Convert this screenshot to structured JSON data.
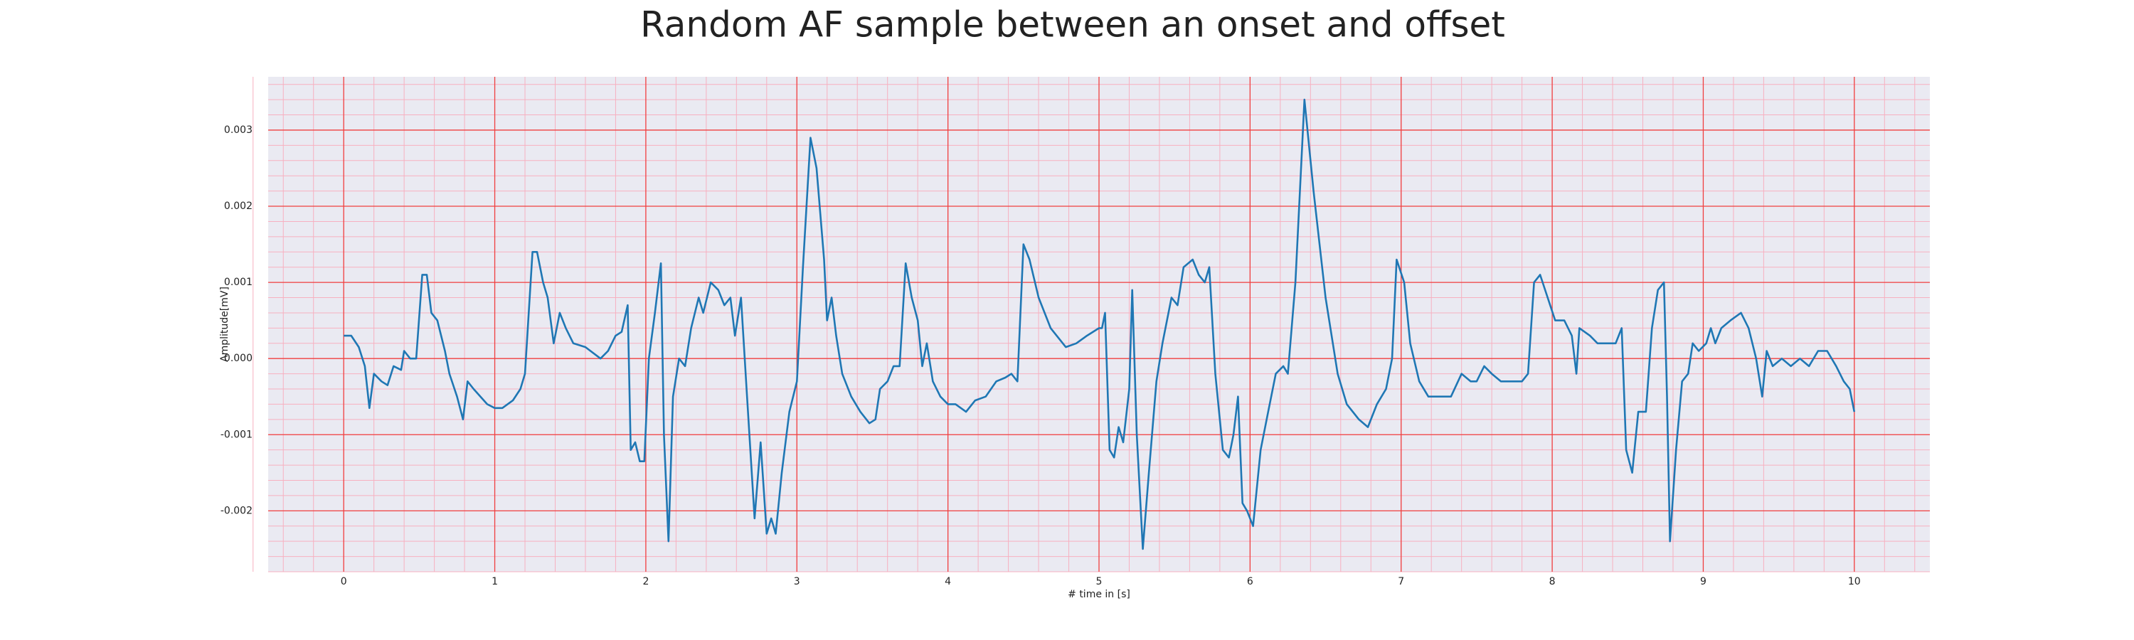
{
  "chart_data": {
    "type": "line",
    "title": "Random AF sample between an onset and offset",
    "xlabel": "# time in [s]",
    "ylabel": "Amplitude[mV]",
    "color": "#1f77b4",
    "grid": true,
    "minor_grid": true,
    "xlim": [
      -0.5,
      10.5
    ],
    "ylim": [
      -0.0028,
      0.0037
    ],
    "xticks": [
      0,
      1,
      2,
      3,
      4,
      5,
      6,
      7,
      8,
      9,
      10
    ],
    "yticks": [
      -0.002,
      -0.001,
      {
        "value": 0,
        "label": "0.000"
      },
      0.001,
      0.002,
      0.003
    ],
    "x": [
      0.0,
      0.05,
      0.1,
      0.14,
      0.17,
      0.2,
      0.25,
      0.29,
      0.33,
      0.38,
      0.4,
      0.44,
      0.48,
      0.52,
      0.55,
      0.58,
      0.62,
      0.67,
      0.7,
      0.75,
      0.79,
      0.82,
      0.86,
      0.95,
      1.0,
      1.05,
      1.12,
      1.17,
      1.2,
      1.25,
      1.28,
      1.32,
      1.35,
      1.39,
      1.43,
      1.47,
      1.52,
      1.6,
      1.7,
      1.75,
      1.8,
      1.84,
      1.88,
      1.9,
      1.93,
      1.96,
      1.99,
      2.02,
      2.06,
      2.1,
      2.12,
      2.15,
      2.18,
      2.22,
      2.26,
      2.3,
      2.35,
      2.38,
      2.43,
      2.48,
      2.52,
      2.56,
      2.59,
      2.63,
      2.67,
      2.72,
      2.76,
      2.8,
      2.83,
      2.86,
      2.9,
      2.95,
      3.0,
      3.04,
      3.09,
      3.13,
      3.18,
      3.2,
      3.23,
      3.26,
      3.3,
      3.36,
      3.42,
      3.48,
      3.52,
      3.55,
      3.6,
      3.64,
      3.68,
      3.72,
      3.76,
      3.8,
      3.83,
      3.86,
      3.9,
      3.95,
      4.0,
      4.05,
      4.12,
      4.18,
      4.25,
      4.32,
      4.38,
      4.42,
      4.46,
      4.5,
      4.54,
      4.6,
      4.68,
      4.78,
      4.85,
      4.92,
      5.0,
      5.02,
      5.04,
      5.07,
      5.1,
      5.13,
      5.16,
      5.2,
      5.22,
      5.25,
      5.29,
      5.33,
      5.38,
      5.42,
      5.48,
      5.52,
      5.56,
      5.62,
      5.66,
      5.7,
      5.73,
      5.77,
      5.82,
      5.86,
      5.89,
      5.92,
      5.95,
      5.98,
      6.02,
      6.07,
      6.12,
      6.17,
      6.22,
      6.25,
      6.3,
      6.36,
      6.42,
      6.5,
      6.58,
      6.64,
      6.72,
      6.78,
      6.84,
      6.9,
      6.94,
      6.97,
      7.02,
      7.06,
      7.12,
      7.18,
      7.25,
      7.33,
      7.4,
      7.46,
      7.5,
      7.55,
      7.6,
      7.66,
      7.74,
      7.8,
      7.84,
      7.88,
      7.92,
      7.97,
      8.02,
      8.08,
      8.13,
      8.16,
      8.18,
      8.25,
      8.3,
      8.36,
      8.42,
      8.46,
      8.49,
      8.53,
      8.57,
      8.62,
      8.66,
      8.7,
      8.74,
      8.76,
      8.78,
      8.82,
      8.86,
      8.9,
      8.93,
      8.97,
      9.02,
      9.05,
      9.08,
      9.12,
      9.18,
      9.25,
      9.3,
      9.35,
      9.39,
      9.42,
      9.46,
      9.52,
      9.58,
      9.64,
      9.7,
      9.76,
      9.82,
      9.88,
      9.93,
      9.97,
      10.0
    ],
    "values": [
      0.0003,
      0.0003,
      0.00015,
      -0.0001,
      -0.00065,
      -0.0002,
      -0.0003,
      -0.00035,
      -0.0001,
      -0.00015,
      0.0001,
      0.0,
      0.0,
      0.0011,
      0.0011,
      0.0006,
      0.0005,
      0.0001,
      -0.0002,
      -0.0005,
      -0.0008,
      -0.0003,
      -0.0004,
      -0.0006,
      -0.00065,
      -0.00065,
      -0.00055,
      -0.0004,
      -0.0002,
      0.0014,
      0.0014,
      0.001,
      0.0008,
      0.0002,
      0.0006,
      0.0004,
      0.0002,
      0.00015,
      0.0,
      0.0001,
      0.0003,
      0.00035,
      0.0007,
      -0.0012,
      -0.0011,
      -0.00135,
      -0.00135,
      0.0,
      0.0006,
      0.00125,
      -0.001,
      -0.0024,
      -0.0005,
      0.0,
      -0.0001,
      0.0004,
      0.0008,
      0.0006,
      0.001,
      0.0009,
      0.0007,
      0.0008,
      0.0003,
      0.0008,
      -0.0005,
      -0.0021,
      -0.0011,
      -0.0023,
      -0.0021,
      -0.0023,
      -0.0015,
      -0.0007,
      -0.0003,
      0.0012,
      0.0029,
      0.0025,
      0.0013,
      0.0005,
      0.0008,
      0.0003,
      -0.0002,
      -0.0005,
      -0.0007,
      -0.00085,
      -0.0008,
      -0.0004,
      -0.0003,
      -0.0001,
      -0.0001,
      0.00125,
      0.0008,
      0.0005,
      -0.0001,
      0.0002,
      -0.0003,
      -0.0005,
      -0.0006,
      -0.0006,
      -0.0007,
      -0.00055,
      -0.0005,
      -0.0003,
      -0.00025,
      -0.0002,
      -0.0003,
      0.0015,
      0.0013,
      0.0008,
      0.0004,
      0.00015,
      0.0002,
      0.0003,
      0.0004,
      0.0004,
      0.0006,
      -0.0012,
      -0.0013,
      -0.0009,
      -0.0011,
      -0.0004,
      0.0009,
      -0.001,
      -0.0025,
      -0.0015,
      -0.0003,
      0.0002,
      0.0008,
      0.0007,
      0.0012,
      0.0013,
      0.0011,
      0.001,
      0.0012,
      -0.0002,
      -0.0012,
      -0.0013,
      -0.001,
      -0.0005,
      -0.0019,
      -0.002,
      -0.0022,
      -0.0012,
      -0.0007,
      -0.0002,
      -0.0001,
      -0.0002,
      0.001,
      0.0034,
      0.0022,
      0.0008,
      -0.0002,
      -0.0006,
      -0.0008,
      -0.0009,
      -0.0006,
      -0.0004,
      0.0,
      0.0013,
      0.001,
      0.0002,
      -0.0003,
      -0.0005,
      -0.0005,
      -0.0005,
      -0.0002,
      -0.0003,
      -0.0003,
      -0.0001,
      -0.0002,
      -0.0003,
      -0.0003,
      -0.0003,
      -0.0002,
      0.001,
      0.0011,
      0.0008,
      0.0005,
      0.0005,
      0.0003,
      -0.0002,
      0.0004,
      0.0003,
      0.0002,
      0.0002,
      0.0002,
      0.0004,
      -0.0012,
      -0.0015,
      -0.0007,
      -0.0007,
      0.0004,
      0.0009,
      0.001,
      -0.0005,
      -0.0024,
      -0.0012,
      -0.0003,
      -0.0002,
      0.0002,
      0.0001,
      0.0002,
      0.0004,
      0.0002,
      0.0004,
      0.0005,
      0.0006,
      0.0004,
      0.0,
      -0.0005,
      0.0001,
      -0.0001,
      0.0,
      -0.0001,
      0.0,
      -0.0001,
      0.0001,
      0.0001,
      -0.0001,
      -0.0003,
      -0.0004,
      -0.0007
    ]
  }
}
